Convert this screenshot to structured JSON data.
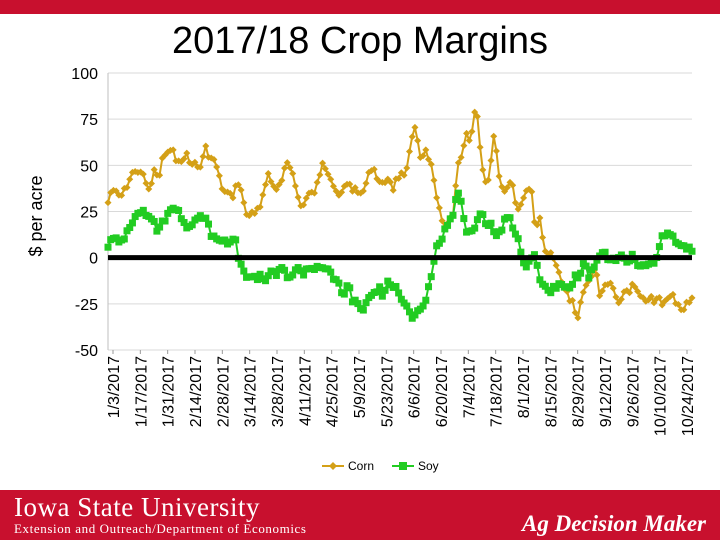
{
  "chart_data": {
    "type": "line",
    "title": "2017/18 Crop Margins",
    "xlabel": "",
    "ylabel": "$ per acre",
    "ylim": [
      -50,
      100
    ],
    "yticks": [
      "100",
      "75",
      "50",
      "25",
      "0",
      "-25",
      "-50"
    ],
    "ytick_values": [
      100,
      75,
      50,
      25,
      0,
      -25,
      -50
    ],
    "x_tick_labels": [
      "1/3/2017",
      "1/17/2017",
      "1/31/2017",
      "2/14/2017",
      "2/28/2017",
      "3/14/2017",
      "3/28/2017",
      "4/11/2017",
      "4/25/2017",
      "5/9/2017",
      "5/23/2017",
      "6/6/2017",
      "6/20/2017",
      "7/4/2017",
      "7/18/2017",
      "8/1/2017",
      "8/15/2017",
      "8/29/2017",
      "9/12/2017",
      "9/26/2017",
      "10/10/2017",
      "10/24/2017"
    ],
    "n_points": 216,
    "series": [
      {
        "name": "Corn",
        "color": "#d4a017",
        "marker": "diamond",
        "anchors": [
          [
            0,
            30
          ],
          [
            2,
            38
          ],
          [
            5,
            35
          ],
          [
            8,
            37
          ],
          [
            12,
            48
          ],
          [
            14,
            47
          ],
          [
            16,
            43
          ],
          [
            18,
            36
          ],
          [
            20,
            47
          ],
          [
            22,
            42
          ],
          [
            24,
            55
          ],
          [
            26,
            57
          ],
          [
            28,
            62
          ],
          [
            30,
            52
          ],
          [
            32,
            50
          ],
          [
            34,
            58
          ],
          [
            36,
            48
          ],
          [
            38,
            52
          ],
          [
            40,
            46
          ],
          [
            42,
            60
          ],
          [
            44,
            55
          ],
          [
            46,
            54
          ],
          [
            48,
            44
          ],
          [
            50,
            37
          ],
          [
            52,
            35
          ],
          [
            54,
            32
          ],
          [
            56,
            40
          ],
          [
            58,
            35
          ],
          [
            60,
            24
          ],
          [
            62,
            22
          ],
          [
            64,
            26
          ],
          [
            66,
            25
          ],
          [
            68,
            40
          ],
          [
            70,
            45
          ],
          [
            72,
            38
          ],
          [
            74,
            37
          ],
          [
            76,
            45
          ],
          [
            78,
            50
          ],
          [
            80,
            46
          ],
          [
            82,
            38
          ],
          [
            84,
            28
          ],
          [
            86,
            32
          ],
          [
            88,
            38
          ],
          [
            90,
            36
          ],
          [
            92,
            45
          ],
          [
            94,
            52
          ],
          [
            96,
            44
          ],
          [
            98,
            37
          ],
          [
            100,
            33
          ],
          [
            102,
            35
          ],
          [
            104,
            40
          ],
          [
            106,
            38
          ],
          [
            108,
            36
          ],
          [
            110,
            34
          ],
          [
            112,
            40
          ],
          [
            114,
            50
          ],
          [
            116,
            47
          ],
          [
            118,
            41
          ],
          [
            120,
            38
          ],
          [
            122,
            44
          ],
          [
            124,
            36
          ],
          [
            126,
            45
          ],
          [
            128,
            44
          ],
          [
            130,
            48
          ],
          [
            132,
            66
          ],
          [
            134,
            70
          ],
          [
            136,
            55
          ],
          [
            138,
            58
          ],
          [
            140,
            53
          ],
          [
            142,
            40
          ],
          [
            144,
            28
          ],
          [
            146,
            18
          ],
          [
            148,
            20
          ],
          [
            150,
            22
          ],
          [
            152,
            48
          ],
          [
            154,
            58
          ],
          [
            156,
            66
          ],
          [
            158,
            65
          ],
          [
            160,
            85
          ],
          [
            162,
            57
          ],
          [
            164,
            40
          ],
          [
            166,
            45
          ],
          [
            168,
            70
          ],
          [
            170,
            45
          ],
          [
            172,
            33
          ],
          [
            174,
            40
          ],
          [
            176,
            38
          ],
          [
            178,
            24
          ],
          [
            180,
            28
          ],
          [
            182,
            38
          ],
          [
            184,
            37
          ],
          [
            186,
            15
          ],
          [
            188,
            20
          ],
          [
            190,
            4
          ],
          [
            192,
            2
          ],
          [
            194,
            -2
          ],
          [
            196,
            -8
          ],
          [
            198,
            -14
          ],
          [
            200,
            -20
          ],
          [
            202,
            -25
          ],
          [
            204,
            -33
          ],
          [
            206,
            -22
          ],
          [
            208,
            -14
          ],
          [
            210,
            -10
          ],
          [
            212,
            -5
          ]
        ],
        "anchors_tail": [
          [
            212,
            -5
          ],
          [
            214,
            -20
          ],
          [
            216,
            -17
          ],
          [
            218,
            -12
          ],
          [
            220,
            -18
          ],
          [
            222,
            -24
          ],
          [
            224,
            -20
          ],
          [
            226,
            -18
          ],
          [
            228,
            -16
          ],
          [
            230,
            -18
          ],
          [
            232,
            -20
          ],
          [
            234,
            -22
          ],
          [
            236,
            -20
          ],
          [
            238,
            -24
          ],
          [
            240,
            -22
          ],
          [
            242,
            -26
          ],
          [
            244,
            -20
          ],
          [
            246,
            -22
          ],
          [
            248,
            -25
          ],
          [
            250,
            -28
          ],
          [
            252,
            -24
          ],
          [
            254,
            -20
          ]
        ]
      },
      {
        "name": "Soy",
        "color": "#22cc22",
        "marker": "square",
        "anchors": [
          [
            0,
            7
          ],
          [
            2,
            10
          ],
          [
            5,
            8
          ],
          [
            8,
            15
          ],
          [
            12,
            26
          ],
          [
            14,
            24
          ],
          [
            16,
            23
          ],
          [
            18,
            22
          ],
          [
            20,
            14
          ],
          [
            22,
            20
          ],
          [
            24,
            22
          ],
          [
            26,
            25
          ],
          [
            28,
            28
          ],
          [
            30,
            20
          ],
          [
            32,
            18
          ],
          [
            34,
            17
          ],
          [
            36,
            22
          ],
          [
            38,
            23
          ],
          [
            40,
            20
          ],
          [
            42,
            13
          ],
          [
            44,
            12
          ],
          [
            46,
            10
          ],
          [
            48,
            9
          ],
          [
            50,
            10
          ],
          [
            52,
            8
          ],
          [
            54,
            -5
          ],
          [
            56,
            -8
          ],
          [
            58,
            -12
          ],
          [
            60,
            -12
          ],
          [
            62,
            -10
          ],
          [
            64,
            -12
          ],
          [
            66,
            -8
          ],
          [
            68,
            -10
          ],
          [
            70,
            -6
          ],
          [
            72,
            -8
          ],
          [
            74,
            -10
          ],
          [
            76,
            -8
          ],
          [
            78,
            -6
          ],
          [
            80,
            -8
          ],
          [
            82,
            -5
          ],
          [
            84,
            -6
          ],
          [
            86,
            -4
          ],
          [
            88,
            -5
          ],
          [
            90,
            -8
          ],
          [
            92,
            -12
          ],
          [
            94,
            -14
          ],
          [
            96,
            -20
          ],
          [
            98,
            -15
          ],
          [
            100,
            -24
          ],
          [
            102,
            -26
          ],
          [
            104,
            -28
          ],
          [
            106,
            -22
          ],
          [
            108,
            -20
          ],
          [
            110,
            -16
          ],
          [
            112,
            -20
          ],
          [
            114,
            -14
          ],
          [
            116,
            -18
          ],
          [
            118,
            -16
          ],
          [
            120,
            -22
          ],
          [
            122,
            -25
          ],
          [
            124,
            -32
          ],
          [
            126,
            -30
          ],
          [
            128,
            -28
          ],
          [
            130,
            -20
          ],
          [
            132,
            -10
          ],
          [
            134,
            5
          ],
          [
            136,
            10
          ],
          [
            138,
            18
          ],
          [
            140,
            20
          ],
          [
            142,
            34
          ],
          [
            144,
            32
          ],
          [
            146,
            12
          ],
          [
            148,
            14
          ],
          [
            150,
            18
          ],
          [
            152,
            26
          ],
          [
            154,
            20
          ],
          [
            156,
            18
          ],
          [
            158,
            12
          ],
          [
            160,
            14
          ],
          [
            162,
            22
          ],
          [
            164,
            20
          ],
          [
            166,
            15
          ],
          [
            168,
            5
          ],
          [
            170,
            -5
          ],
          [
            172,
            -2
          ],
          [
            174,
            0
          ],
          [
            176,
            -10
          ],
          [
            178,
            -15
          ],
          [
            180,
            -18
          ],
          [
            182,
            -16
          ],
          [
            184,
            -14
          ],
          [
            186,
            -18
          ],
          [
            188,
            -15
          ],
          [
            190,
            -12
          ],
          [
            192,
            -8
          ],
          [
            194,
            -4
          ],
          [
            196,
            -10
          ],
          [
            198,
            -5
          ],
          [
            200,
            -2
          ],
          [
            202,
            3
          ]
        ],
        "anchors_tail": [
          [
            202,
            3
          ],
          [
            204,
            0
          ],
          [
            206,
            -2
          ],
          [
            208,
            -1
          ],
          [
            210,
            0
          ],
          [
            212,
            -2
          ],
          [
            214,
            2
          ],
          [
            216,
            -4
          ],
          [
            218,
            -3
          ],
          [
            220,
            -5
          ],
          [
            222,
            -2
          ],
          [
            224,
            0
          ],
          [
            226,
            12
          ],
          [
            228,
            14
          ],
          [
            230,
            10
          ],
          [
            232,
            8
          ],
          [
            234,
            7
          ],
          [
            236,
            5
          ],
          [
            238,
            5
          ]
        ]
      }
    ],
    "zero_line": 0,
    "legend": {
      "position": "bottom",
      "entries": [
        "Corn",
        "Soy"
      ]
    }
  },
  "footer": {
    "university": "Iowa State University",
    "department": "Extension and Outreach/Department of Economics",
    "brand": "Ag Decision Maker"
  },
  "colors": {
    "brand_red": "#c8102e"
  }
}
